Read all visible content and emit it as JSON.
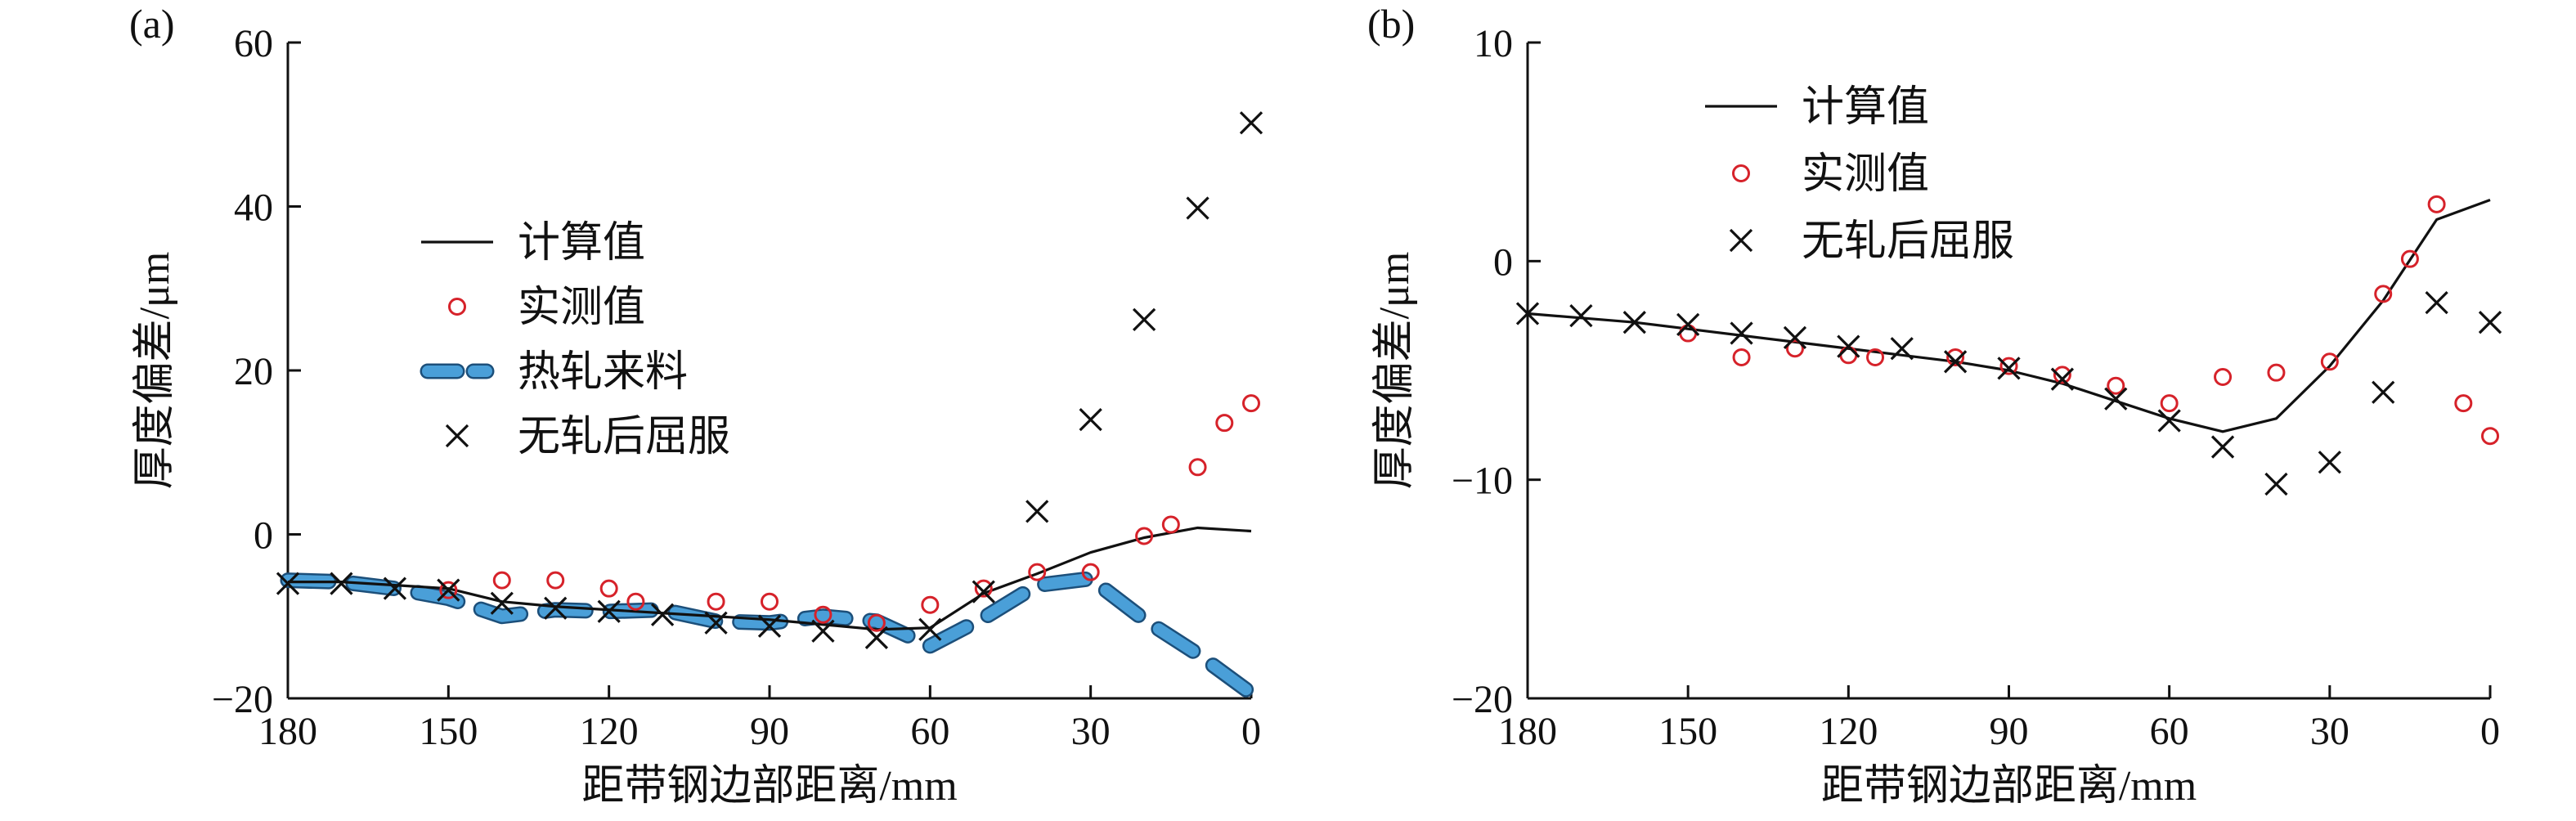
{
  "chart_data": [
    {
      "type": "line",
      "panel_label": "(a)",
      "xlabel": "距带钢边部距离/mm",
      "ylabel": "厚度偏差/μm",
      "xlim": [
        180,
        0
      ],
      "ylim": [
        -20,
        60
      ],
      "xticks": [
        "180",
        "150",
        "120",
        "90",
        "60",
        "30",
        "0"
      ],
      "yticks": [
        "−20",
        "0",
        "20",
        "40",
        "60"
      ],
      "legend_position": "center-left",
      "grid": false,
      "series": [
        {
          "name": "计算值",
          "style": "line",
          "color": "#111111",
          "x": [
            180,
            170,
            160,
            150,
            140,
            130,
            120,
            110,
            100,
            90,
            80,
            70,
            60,
            50,
            40,
            30,
            20,
            10,
            0
          ],
          "y": [
            -5.8,
            -5.8,
            -6.2,
            -6.6,
            -8.2,
            -8.8,
            -9.2,
            -9.6,
            -10.0,
            -10.4,
            -11.0,
            -11.6,
            -11.4,
            -7.2,
            -4.8,
            -2.2,
            -0.4,
            0.8,
            0.4
          ]
        },
        {
          "name": "实测值",
          "style": "circle",
          "color": "#d6222a",
          "x": [
            150,
            140,
            130,
            120,
            115,
            100,
            90,
            80,
            70,
            60,
            50,
            40,
            30,
            20,
            15,
            10,
            5,
            0
          ],
          "y": [
            -6.8,
            -5.6,
            -5.6,
            -6.6,
            -8.2,
            -8.2,
            -8.2,
            -9.8,
            -10.8,
            -8.6,
            -6.6,
            -4.6,
            -4.6,
            -0.2,
            1.2,
            8.2,
            13.6,
            16.0
          ]
        },
        {
          "name": "热轧来料",
          "style": "dashed",
          "color": "#4a9fd8",
          "x": [
            180,
            170,
            160,
            150,
            140,
            130,
            120,
            110,
            100,
            90,
            80,
            70,
            60,
            50,
            40,
            30,
            20,
            10,
            0
          ],
          "y": [
            -5.6,
            -5.8,
            -6.6,
            -7.8,
            -10.0,
            -9.2,
            -9.4,
            -9.2,
            -10.6,
            -10.8,
            -10.0,
            -10.6,
            -13.6,
            -10.2,
            -6.2,
            -5.4,
            -10.4,
            -14.6,
            -19.4
          ]
        },
        {
          "name": "无轧后屈服",
          "style": "cross",
          "color": "#111111",
          "x": [
            180,
            170,
            160,
            150,
            140,
            130,
            120,
            110,
            100,
            90,
            80,
            70,
            60,
            50,
            40,
            30,
            20,
            10,
            0
          ],
          "y": [
            -6.0,
            -6.0,
            -6.6,
            -6.8,
            -8.4,
            -9.0,
            -9.4,
            -9.8,
            -10.8,
            -11.2,
            -11.8,
            -12.6,
            -11.6,
            -7.0,
            2.8,
            14.0,
            26.2,
            39.8,
            50.2
          ]
        }
      ]
    },
    {
      "type": "line",
      "panel_label": "(b)",
      "xlabel": "距带钢边部距离/mm",
      "ylabel": "厚度偏差/μm",
      "xlim": [
        180,
        0
      ],
      "ylim": [
        -20,
        10
      ],
      "xticks": [
        "180",
        "150",
        "120",
        "90",
        "60",
        "30",
        "0"
      ],
      "yticks": [
        "−20",
        "−10",
        "0",
        "10"
      ],
      "legend_position": "top-left",
      "grid": false,
      "series": [
        {
          "name": "计算值",
          "style": "line",
          "color": "#111111",
          "x": [
            180,
            170,
            160,
            150,
            140,
            130,
            120,
            110,
            100,
            90,
            80,
            70,
            60,
            50,
            40,
            30,
            20,
            10,
            0
          ],
          "y": [
            -2.4,
            -2.6,
            -2.8,
            -3.1,
            -3.4,
            -3.7,
            -4.0,
            -4.3,
            -4.6,
            -5.0,
            -5.6,
            -6.4,
            -7.2,
            -7.8,
            -7.2,
            -4.8,
            -1.8,
            1.9,
            2.8
          ]
        },
        {
          "name": "实测值",
          "style": "circle",
          "color": "#d6222a",
          "x": [
            150,
            140,
            130,
            120,
            115,
            100,
            90,
            80,
            70,
            60,
            50,
            40,
            30,
            20,
            15,
            10,
            5,
            0
          ],
          "y": [
            -3.3,
            -4.4,
            -4.0,
            -4.3,
            -4.4,
            -4.4,
            -4.8,
            -5.2,
            -5.7,
            -6.5,
            -5.3,
            -5.1,
            -4.6,
            -1.5,
            0.1,
            2.6,
            -6.5,
            -8.0
          ]
        },
        {
          "name": "无轧后屈服",
          "style": "cross",
          "color": "#111111",
          "x": [
            180,
            170,
            160,
            150,
            140,
            130,
            120,
            110,
            100,
            90,
            80,
            70,
            60,
            50,
            40,
            30,
            20,
            10,
            0
          ],
          "y": [
            -2.4,
            -2.5,
            -2.8,
            -2.9,
            -3.3,
            -3.5,
            -3.9,
            -4.0,
            -4.6,
            -4.9,
            -5.4,
            -6.3,
            -7.3,
            -8.5,
            -10.2,
            -9.2,
            -6.0,
            -1.9,
            -2.8
          ]
        }
      ]
    }
  ]
}
